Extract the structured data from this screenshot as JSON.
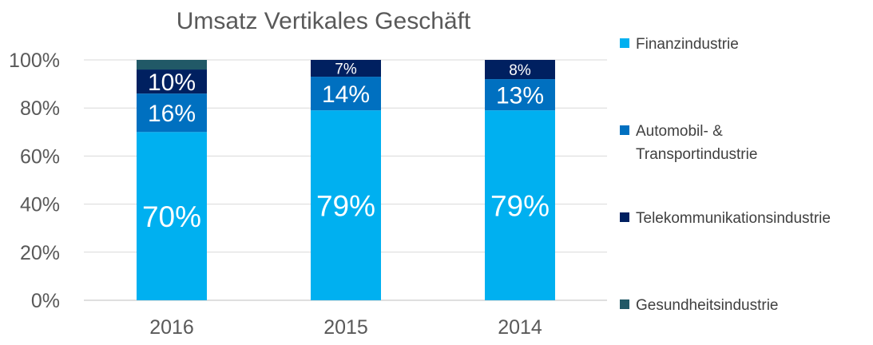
{
  "chart_data": {
    "type": "bar",
    "stacked": true,
    "title": "Umsatz Vertikales Geschäft",
    "categories": [
      "2016",
      "2015",
      "2014"
    ],
    "ylim": [
      0,
      100
    ],
    "yticks": [
      "0%",
      "20%",
      "40%",
      "60%",
      "80%",
      "100%"
    ],
    "grid": true,
    "legend_position": "right",
    "series": [
      {
        "name": "Finanzindustrie",
        "values": [
          70,
          79,
          79
        ],
        "labels": [
          "70%",
          "79%",
          "79%"
        ],
        "color": "#00b0f0"
      },
      {
        "name": "Automobil- & Transportindustrie",
        "name_lines": [
          "Automobil- &",
          "Transportindustrie"
        ],
        "values": [
          16,
          14,
          13
        ],
        "labels": [
          "16%",
          "14%",
          "13%"
        ],
        "color": "#0070c0"
      },
      {
        "name": "Telekommunikationsindustrie",
        "values": [
          10,
          7,
          8
        ],
        "labels": [
          "10%",
          "7%",
          "8%"
        ],
        "color": "#002060"
      },
      {
        "name": "Gesundheitsindustrie",
        "values": [
          4,
          0,
          0
        ],
        "labels": [
          "",
          "",
          ""
        ],
        "color": "#215967"
      }
    ]
  }
}
